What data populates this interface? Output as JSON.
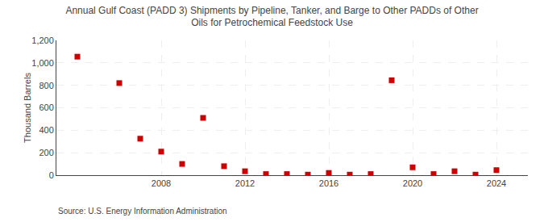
{
  "chart_data": {
    "type": "scatter",
    "title": "Annual Gulf Coast (PADD 3) Shipments by Pipeline, Tanker, and Barge to Other PADDs of Other\nOils for Petrochemical Feedstock Use",
    "ylabel": "Thousand Barrels",
    "source": "Source: U.S. Energy Information Administration",
    "x": [
      2004,
      2006,
      2007,
      2008,
      2009,
      2010,
      2011,
      2012,
      2013,
      2014,
      2015,
      2016,
      2017,
      2018,
      2019,
      2020,
      2021,
      2022,
      2023,
      2024
    ],
    "values": [
      1055,
      820,
      325,
      210,
      100,
      510,
      80,
      35,
      10,
      10,
      5,
      20,
      5,
      10,
      845,
      70,
      10,
      35,
      5,
      45
    ],
    "color": "#cc0000",
    "marker": "square",
    "xlim": [
      2003,
      2025.5
    ],
    "xticks": [
      2008,
      2012,
      2016,
      2020,
      2024
    ],
    "ylim": [
      0,
      1200
    ],
    "yticks": [
      0,
      200,
      400,
      600,
      800,
      {
        "value": 1000,
        "label": "1,000"
      },
      {
        "value": 1200,
        "label": "1,200"
      }
    ],
    "grid": true
  }
}
